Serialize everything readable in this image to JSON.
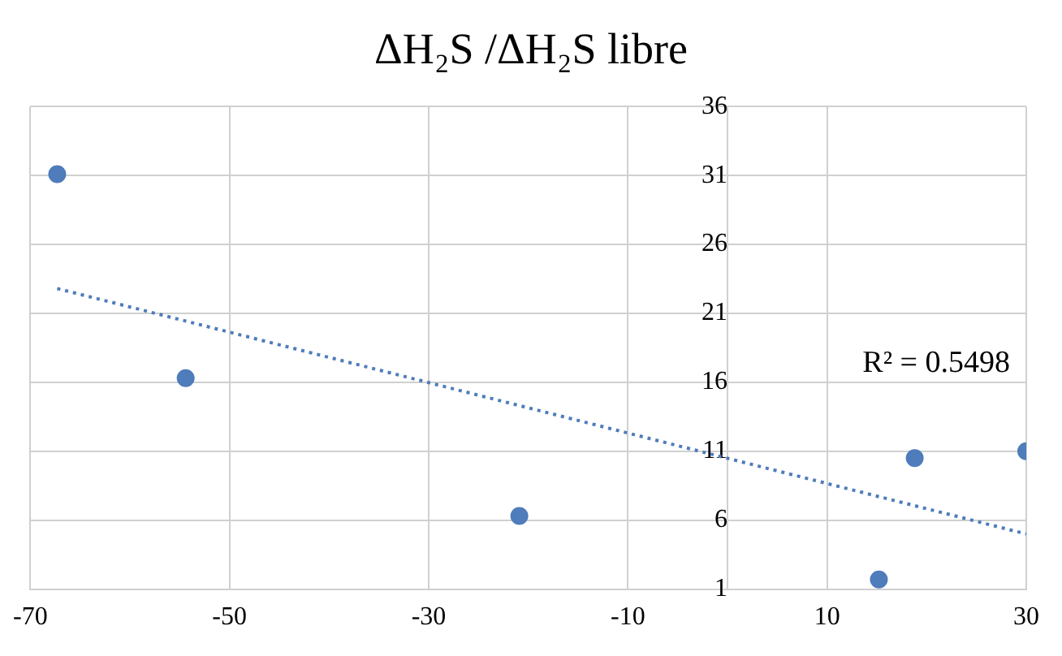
{
  "chart_data": {
    "type": "scatter",
    "title": "ΔH₂S /ΔH₂S libre",
    "series": [
      {
        "color": "#4f7cba",
        "x": [
          -67.3,
          -54.4,
          -20.9,
          15.2,
          18.8,
          30
        ],
        "values": [
          31.1,
          16.3,
          6.3,
          1.7,
          10.5,
          11.0
        ]
      },
      {
        "type": "line",
        "color": "#4f7cba",
        "line_style": "dotted",
        "marker": "none",
        "x": [
          -67.3,
          30
        ],
        "values": [
          22.8,
          5.0
        ]
      }
    ],
    "marker": "circle",
    "xlim": [
      -70,
      30
    ],
    "xticks": [
      -70,
      -50,
      -30,
      -10,
      10,
      30
    ],
    "ylim": [
      1,
      36
    ],
    "yticks": [
      1,
      6,
      11,
      16,
      21,
      26,
      31,
      36
    ],
    "grid": true,
    "legend": false,
    "annotations": [
      "R² = 0.5498"
    ]
  }
}
